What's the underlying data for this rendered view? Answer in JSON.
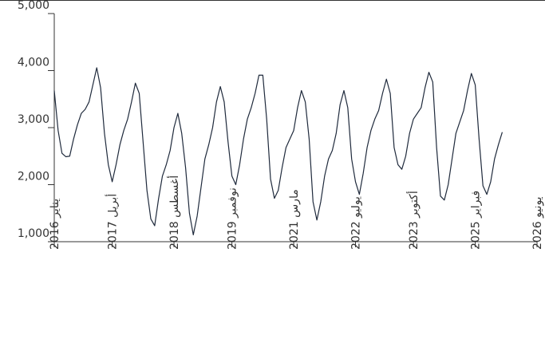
{
  "chart_data": {
    "type": "line",
    "title": "",
    "xlabel": "",
    "ylabel": "",
    "ylim": [
      1000,
      5000
    ],
    "yticks": [
      1000,
      2000,
      3000,
      4000,
      5000
    ],
    "ytick_labels": [
      "1,000",
      "2,000",
      "3,000",
      "4,000",
      "5,000"
    ],
    "x_range": [
      "2016-01",
      "2026-06"
    ],
    "x_ticks": [
      {
        "date": "2016-01",
        "label": "يناير 2016"
      },
      {
        "date": "2017-04",
        "label": "أبريل 2017"
      },
      {
        "date": "2018-08",
        "label": "أغسطس 2018"
      },
      {
        "date": "2019-11",
        "label": "نوفمبر 2019"
      },
      {
        "date": "2021-03",
        "label": "مارس 2021"
      },
      {
        "date": "2022-07",
        "label": "يوليو 2022"
      },
      {
        "date": "2023-10",
        "label": "أكتوبر 2023"
      },
      {
        "date": "2025-02",
        "label": "فبراير 2025"
      },
      {
        "date": "2026-06",
        "label": "يونيو 2026"
      }
    ],
    "grid": false,
    "legend": "none",
    "series": [
      {
        "color": "#1f2a3c",
        "points": [
          [
            "2016-01",
            3650
          ],
          [
            "2016-02",
            2950
          ],
          [
            "2016-03",
            2550
          ],
          [
            "2016-04",
            2490
          ],
          [
            "2016-05",
            2500
          ],
          [
            "2016-06",
            2800
          ],
          [
            "2016-07",
            3050
          ],
          [
            "2016-08",
            3250
          ],
          [
            "2016-09",
            3320
          ],
          [
            "2016-10",
            3450
          ],
          [
            "2016-11",
            3750
          ],
          [
            "2016-12",
            4050
          ],
          [
            "2017-01",
            3700
          ],
          [
            "2017-02",
            2900
          ],
          [
            "2017-03",
            2350
          ],
          [
            "2017-04",
            2050
          ],
          [
            "2017-05",
            2350
          ],
          [
            "2017-06",
            2700
          ],
          [
            "2017-07",
            2950
          ],
          [
            "2017-08",
            3150
          ],
          [
            "2017-09",
            3450
          ],
          [
            "2017-10",
            3780
          ],
          [
            "2017-11",
            3600
          ],
          [
            "2017-12",
            2750
          ],
          [
            "2018-01",
            1900
          ],
          [
            "2018-02",
            1400
          ],
          [
            "2018-03",
            1280
          ],
          [
            "2018-04",
            1750
          ],
          [
            "2018-05",
            2150
          ],
          [
            "2018-06",
            2350
          ],
          [
            "2018-07",
            2600
          ],
          [
            "2018-08",
            3000
          ],
          [
            "2018-09",
            3250
          ],
          [
            "2018-10",
            2900
          ],
          [
            "2018-11",
            2300
          ],
          [
            "2018-12",
            1500
          ],
          [
            "2019-01",
            1120
          ],
          [
            "2019-02",
            1450
          ],
          [
            "2019-03",
            1950
          ],
          [
            "2019-04",
            2450
          ],
          [
            "2019-05",
            2700
          ],
          [
            "2019-06",
            3000
          ],
          [
            "2019-07",
            3450
          ],
          [
            "2019-08",
            3720
          ],
          [
            "2019-09",
            3450
          ],
          [
            "2019-10",
            2750
          ],
          [
            "2019-11",
            2150
          ],
          [
            "2019-12",
            2000
          ],
          [
            "2020-01",
            2350
          ],
          [
            "2020-02",
            2800
          ],
          [
            "2020-03",
            3150
          ],
          [
            "2020-04",
            3350
          ],
          [
            "2020-05",
            3600
          ],
          [
            "2020-06",
            3920
          ],
          [
            "2020-07",
            3920
          ],
          [
            "2020-08",
            3150
          ],
          [
            "2020-09",
            2100
          ],
          [
            "2020-10",
            1760
          ],
          [
            "2020-11",
            1900
          ],
          [
            "2020-12",
            2300
          ],
          [
            "2021-01",
            2650
          ],
          [
            "2021-02",
            2800
          ],
          [
            "2021-03",
            2950
          ],
          [
            "2021-04",
            3350
          ],
          [
            "2021-05",
            3650
          ],
          [
            "2021-06",
            3450
          ],
          [
            "2021-07",
            2800
          ],
          [
            "2021-08",
            1700
          ],
          [
            "2021-09",
            1380
          ],
          [
            "2021-10",
            1700
          ],
          [
            "2021-11",
            2150
          ],
          [
            "2021-12",
            2450
          ],
          [
            "2022-01",
            2600
          ],
          [
            "2022-02",
            2900
          ],
          [
            "2022-03",
            3400
          ],
          [
            "2022-04",
            3650
          ],
          [
            "2022-05",
            3350
          ],
          [
            "2022-06",
            2450
          ],
          [
            "2022-07",
            2050
          ],
          [
            "2022-08",
            1830
          ],
          [
            "2022-09",
            2200
          ],
          [
            "2022-10",
            2650
          ],
          [
            "2022-11",
            2950
          ],
          [
            "2022-12",
            3150
          ],
          [
            "2023-01",
            3300
          ],
          [
            "2023-02",
            3600
          ],
          [
            "2023-03",
            3850
          ],
          [
            "2023-04",
            3600
          ],
          [
            "2023-05",
            2650
          ],
          [
            "2023-06",
            2350
          ],
          [
            "2023-07",
            2270
          ],
          [
            "2023-08",
            2500
          ],
          [
            "2023-09",
            2900
          ],
          [
            "2023-10",
            3150
          ],
          [
            "2023-11",
            3250
          ],
          [
            "2023-12",
            3350
          ],
          [
            "2024-01",
            3700
          ],
          [
            "2024-02",
            3970
          ],
          [
            "2024-03",
            3800
          ],
          [
            "2024-04",
            2650
          ],
          [
            "2024-05",
            1800
          ],
          [
            "2024-06",
            1730
          ],
          [
            "2024-07",
            2000
          ],
          [
            "2024-08",
            2450
          ],
          [
            "2024-09",
            2900
          ],
          [
            "2024-10",
            3100
          ],
          [
            "2024-11",
            3300
          ],
          [
            "2024-12",
            3650
          ],
          [
            "2025-01",
            3950
          ],
          [
            "2025-02",
            3750
          ],
          [
            "2025-03",
            2800
          ],
          [
            "2025-04",
            1980
          ],
          [
            "2025-05",
            1830
          ],
          [
            "2025-06",
            2050
          ],
          [
            "2025-07",
            2450
          ],
          [
            "2025-08",
            2700
          ],
          [
            "2025-09",
            2920
          ]
        ]
      }
    ]
  }
}
